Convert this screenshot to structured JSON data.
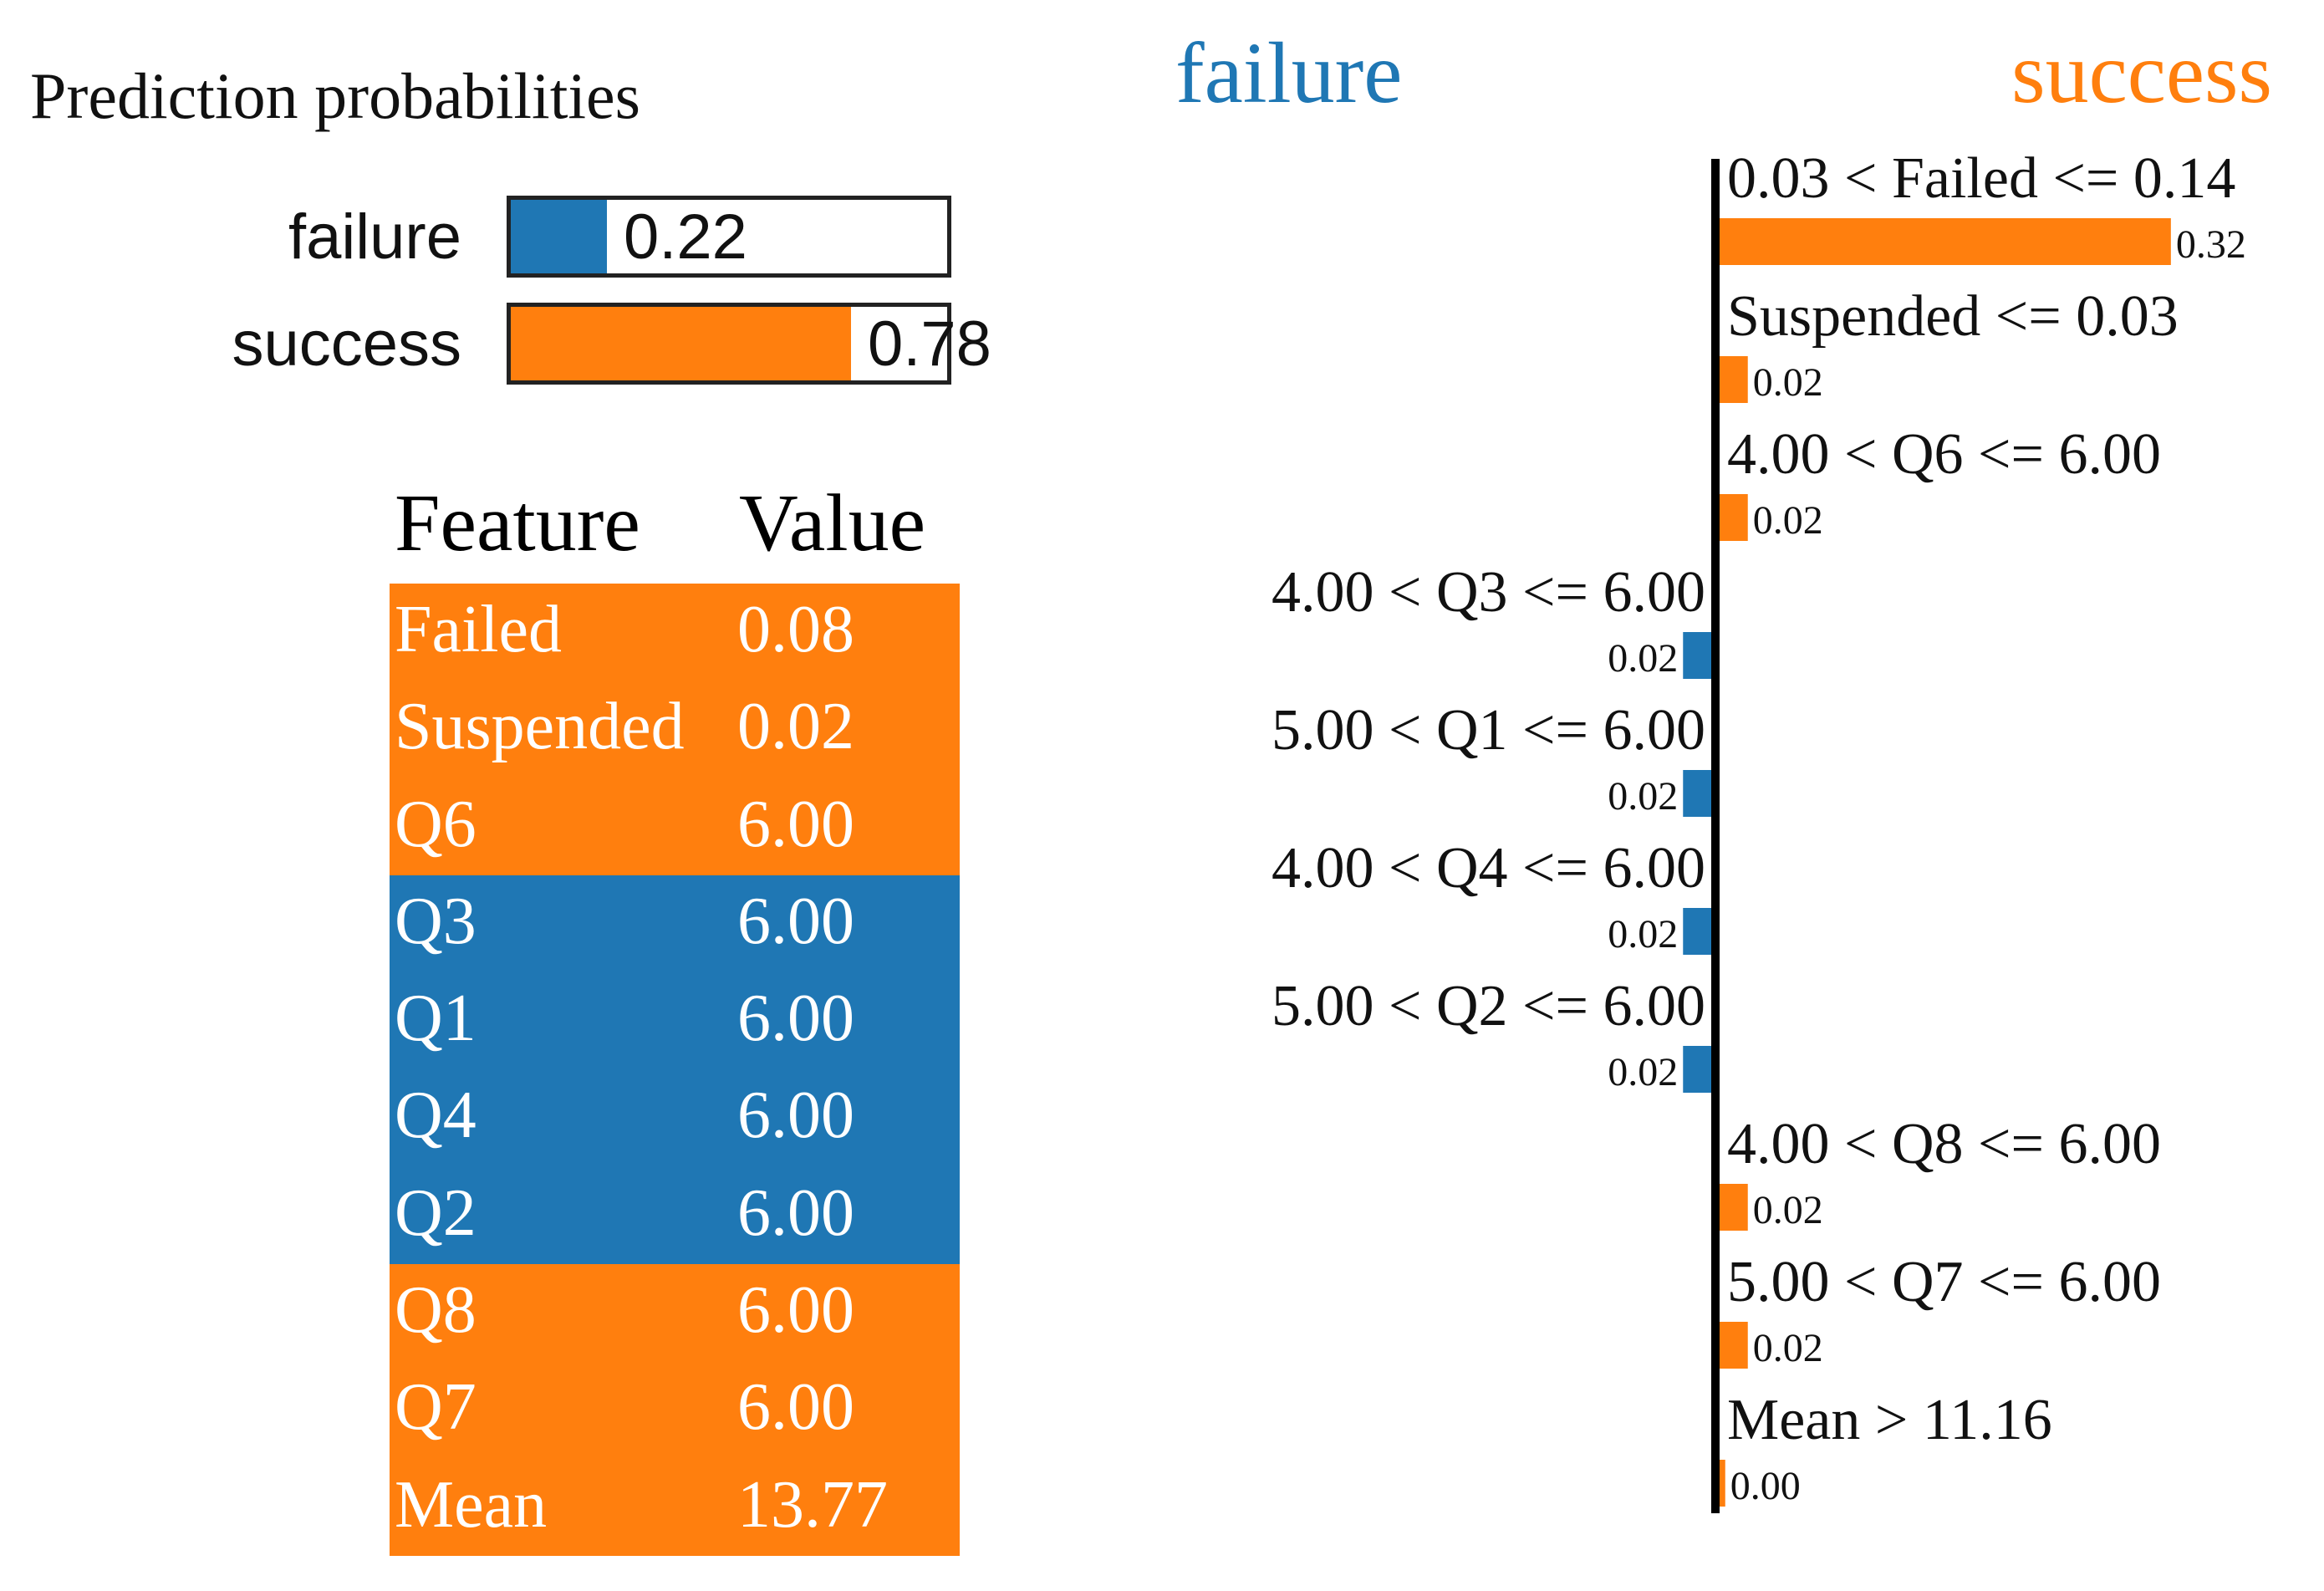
{
  "prediction": {
    "title": "Prediction probabilities",
    "classes": [
      {
        "name": "failure",
        "prob": 0.22,
        "display": "0.22",
        "color": "#1f77b4"
      },
      {
        "name": "success",
        "prob": 0.78,
        "display": "0.78",
        "color": "#ff7f0e"
      }
    ]
  },
  "table": {
    "header_feature": "Feature",
    "header_value": "Value",
    "rows": [
      {
        "feature": "Failed",
        "value": "0.08",
        "color": "#ff7f0e"
      },
      {
        "feature": "Suspended",
        "value": "0.02",
        "color": "#ff7f0e"
      },
      {
        "feature": "Q6",
        "value": "6.00",
        "color": "#ff7f0e"
      },
      {
        "feature": "Q3",
        "value": "6.00",
        "color": "#1f77b4"
      },
      {
        "feature": "Q1",
        "value": "6.00",
        "color": "#1f77b4"
      },
      {
        "feature": "Q4",
        "value": "6.00",
        "color": "#1f77b4"
      },
      {
        "feature": "Q2",
        "value": "6.00",
        "color": "#1f77b4"
      },
      {
        "feature": "Q8",
        "value": "6.00",
        "color": "#ff7f0e"
      },
      {
        "feature": "Q7",
        "value": "6.00",
        "color": "#ff7f0e"
      },
      {
        "feature": "Mean",
        "value": "13.77",
        "color": "#ff7f0e"
      }
    ]
  },
  "chart_data": {
    "type": "bar",
    "orientation": "horizontal-diverging",
    "negative_class": "failure",
    "positive_class": "success",
    "negative_color": "#1f77b4",
    "positive_color": "#ff7f0e",
    "categories": [
      "0.03 < Failed <= 0.14",
      "Suspended <= 0.03",
      "4.00 < Q6 <= 6.00",
      "4.00 < Q3 <= 6.00",
      "5.00 < Q1 <= 6.00",
      "4.00 < Q4 <= 6.00",
      "5.00 < Q2 <= 6.00",
      "4.00 < Q8 <= 6.00",
      "5.00 < Q7 <= 6.00",
      "Mean > 11.16"
    ],
    "values": [
      0.32,
      0.02,
      0.02,
      -0.02,
      -0.02,
      -0.02,
      -0.02,
      0.02,
      0.02,
      0.004
    ],
    "value_labels": [
      "0.32",
      "0.02",
      "0.02",
      "0.02",
      "0.02",
      "0.02",
      "0.02",
      "0.02",
      "0.02",
      "0.00"
    ],
    "title": "",
    "xlabel": "",
    "ylabel": ""
  }
}
